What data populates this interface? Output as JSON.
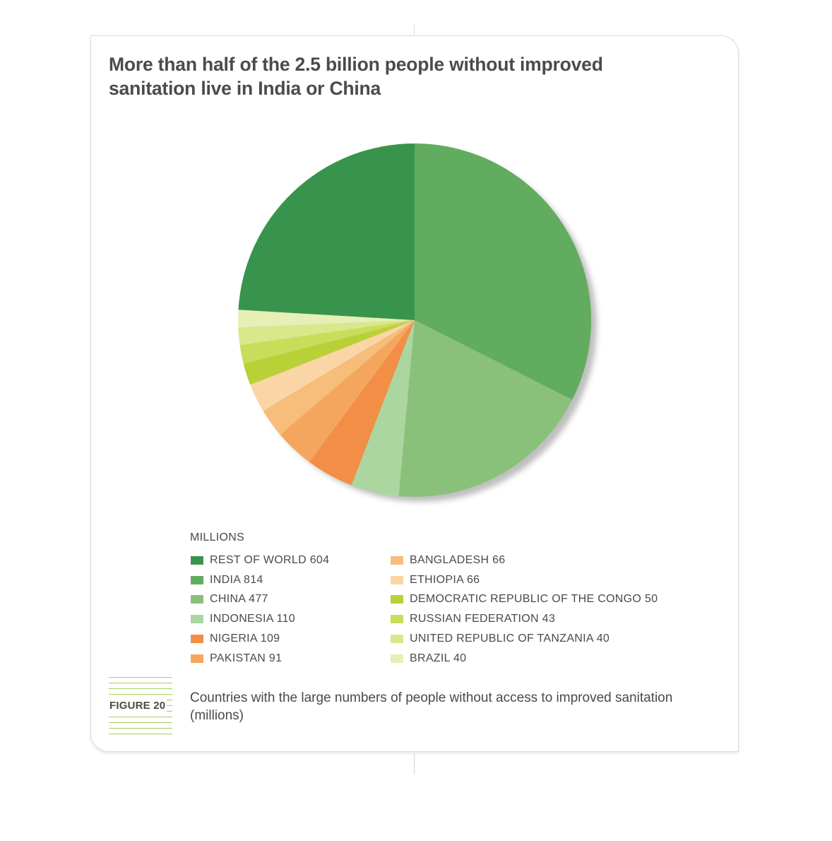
{
  "page": {
    "title": "More than half of the 2.5 billion people without improved sanitation live in India or China",
    "units_label": "MILLIONS",
    "figure_label": "FIGURE 20",
    "caption": "Countries with the large numbers of people without access to improved sanitation (millions)"
  },
  "legend_col1": [
    {
      "text": "REST OF WORLD 604",
      "color": "#38944d"
    },
    {
      "text": "INDIA 814",
      "color": "#62ac5f"
    },
    {
      "text": "CHINA 477",
      "color": "#89c17a"
    },
    {
      "text": "INDONESIA 110",
      "color": "#acd6a0"
    },
    {
      "text": "NIGERIA 109",
      "color": "#f28e46"
    },
    {
      "text": "PAKISTAN 91",
      "color": "#f5a65e"
    }
  ],
  "legend_col2": [
    {
      "text": "BANGLADESH 66",
      "color": "#f7bd7b"
    },
    {
      "text": "ETHIOPIA 66",
      "color": "#fad5a6"
    },
    {
      "text": "DEMOCRATIC REPUBLIC OF THE CONGO 50",
      "color": "#b8d136"
    },
    {
      "text": "RUSSIAN FEDERATION 43",
      "color": "#c9dd5b"
    },
    {
      "text": "UNITED REPUBLIC OF TANZANIA 40",
      "color": "#d9e88b"
    },
    {
      "text": "BRAZIL 40",
      "color": "#e6efb6"
    }
  ],
  "chart_data": {
    "type": "pie",
    "title": "More than half of the 2.5 billion people without improved sanitation live in India or China",
    "unit": "MILLIONS",
    "start": "12 o'clock, clockwise",
    "slices": [
      {
        "label": "INDIA",
        "value": 814,
        "color": "#62ac5f"
      },
      {
        "label": "CHINA",
        "value": 477,
        "color": "#89c17a"
      },
      {
        "label": "INDONESIA",
        "value": 110,
        "color": "#acd6a0"
      },
      {
        "label": "NIGERIA",
        "value": 109,
        "color": "#f28e46"
      },
      {
        "label": "PAKISTAN",
        "value": 91,
        "color": "#f5a65e"
      },
      {
        "label": "BANGLADESH",
        "value": 66,
        "color": "#f7bd7b"
      },
      {
        "label": "ETHIOPIA",
        "value": 66,
        "color": "#fad5a6"
      },
      {
        "label": "DEMOCRATIC REPUBLIC OF THE CONGO",
        "value": 50,
        "color": "#b8d136"
      },
      {
        "label": "RUSSIAN FEDERATION",
        "value": 43,
        "color": "#c9dd5b"
      },
      {
        "label": "UNITED REPUBLIC OF TANZANIA",
        "value": 40,
        "color": "#d9e88b"
      },
      {
        "label": "BRAZIL",
        "value": 40,
        "color": "#e6efb6"
      },
      {
        "label": "REST OF WORLD",
        "value": 604,
        "color": "#38944d"
      }
    ]
  }
}
